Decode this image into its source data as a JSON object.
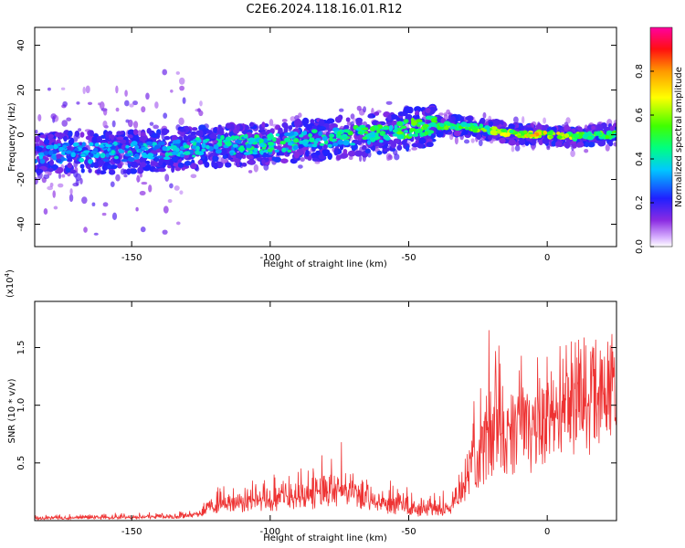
{
  "page": {
    "title": "C2E6.2024.118.16.01.R12"
  },
  "colors": {
    "snr_line": "#ee3333",
    "axes": "#000000"
  },
  "chart_data": [
    {
      "id": "spectrogram",
      "type": "heatmap",
      "title": "C2E6.2024.118.16.01.R12",
      "xlabel": "Height of straight line (km)",
      "ylabel": "Frequency (Hz)",
      "xlim": [
        -185,
        25
      ],
      "ylim": [
        -50,
        48
      ],
      "x_ticks": [
        -150,
        -100,
        -50,
        0
      ],
      "y_ticks": [
        -40,
        -20,
        0,
        20,
        40
      ],
      "colormap": "rainbow (violet → blue → cyan → green → yellow → orange → red)",
      "ridge": {
        "x": [
          -185,
          -160,
          -140,
          -120,
          -100,
          -80,
          -60,
          -50,
          -40,
          -30,
          -20,
          -10,
          0,
          10,
          20,
          25
        ],
        "freq": [
          -8,
          -8,
          -7,
          -5,
          -4,
          -2,
          1,
          3,
          4,
          4,
          2,
          0,
          0,
          -1,
          0,
          0
        ],
        "peak_amplitude": [
          0.35,
          0.4,
          0.42,
          0.45,
          0.5,
          0.5,
          0.55,
          0.6,
          0.6,
          0.62,
          0.65,
          0.75,
          0.85,
          0.7,
          0.6,
          0.55
        ]
      },
      "colorbar": {
        "label": "Normalized spectral amplitude",
        "range": [
          0.0,
          1.0
        ],
        "ticks": [
          "0.0",
          "0.2",
          "0.4",
          "0.6",
          "0.8"
        ]
      }
    },
    {
      "id": "snr",
      "type": "line",
      "xlabel": "Height of straight line (km)",
      "ylabel": "SNR (10 * v/v)",
      "y_multiplier": "(x10",
      "y_multiplier_exp": "4",
      "y_multiplier_close": ")",
      "xlim": [
        -185,
        25
      ],
      "ylim": [
        0,
        1.9
      ],
      "x_ticks": [
        -150,
        -100,
        -50,
        0
      ],
      "y_ticks": [
        0.5,
        1.0,
        1.5
      ],
      "y_tick_labels": [
        "0.5",
        "1.0",
        "1.5"
      ],
      "envelope": {
        "x": [
          -185,
          -130,
          -125,
          -120,
          -100,
          -90,
          -80,
          -74,
          -70,
          -60,
          -45,
          -35,
          -30,
          -27,
          -25,
          -20,
          -15,
          -10,
          -5,
          0,
          5,
          10,
          15,
          20,
          25
        ],
        "base": [
          0.02,
          0.04,
          0.08,
          0.15,
          0.18,
          0.22,
          0.25,
          0.3,
          0.26,
          0.15,
          0.08,
          0.1,
          0.35,
          0.6,
          0.55,
          0.9,
          0.8,
          1.1,
          1.0,
          1.2,
          1.15,
          1.3,
          1.4,
          1.45,
          1.55
        ],
        "peak": [
          0.05,
          0.09,
          0.15,
          0.3,
          0.45,
          0.5,
          0.6,
          0.8,
          0.55,
          0.4,
          0.25,
          0.3,
          0.65,
          1.2,
          1.4,
          1.9,
          1.5,
          1.6,
          1.55,
          1.7,
          1.6,
          1.9,
          1.8,
          1.85,
          1.9
        ]
      }
    }
  ]
}
